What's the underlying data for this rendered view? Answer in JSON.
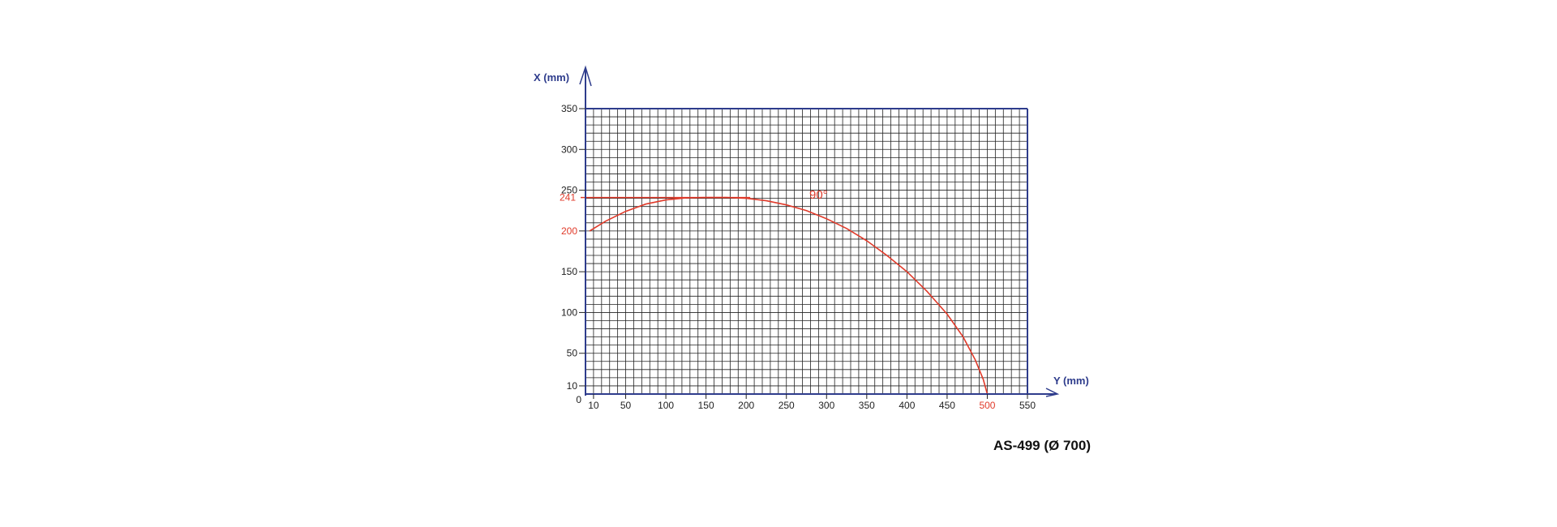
{
  "chart_data": {
    "type": "line",
    "caption": "AS-499 (Ø 700)",
    "x_axis": {
      "label": "Y (mm)",
      "range": [
        0,
        550
      ],
      "tick_labels": [
        "10",
        "50",
        "100",
        "150",
        "200",
        "250",
        "300",
        "350",
        "400",
        "450",
        "500",
        "550"
      ],
      "tick_values": [
        10,
        50,
        100,
        150,
        200,
        250,
        300,
        350,
        400,
        450,
        500,
        550
      ],
      "highlight_tick": "500",
      "minor_step": 10
    },
    "y_axis": {
      "label": "X (mm)",
      "range": [
        0,
        350
      ],
      "tick_labels": [
        "0",
        "10",
        "50",
        "100",
        "150",
        "200",
        "250",
        "300",
        "350"
      ],
      "tick_values": [
        0,
        10,
        50,
        100,
        150,
        200,
        250,
        300,
        350
      ],
      "highlight_ticks": [
        "200"
      ],
      "minor_step": 10
    },
    "grid": true,
    "reference_line": {
      "y": 241,
      "x_end": 205,
      "label": "241"
    },
    "series": [
      {
        "annotation": "90°",
        "color": "#e03a2a",
        "points": [
          [
            5,
            200
          ],
          [
            25,
            212
          ],
          [
            50,
            224
          ],
          [
            75,
            233
          ],
          [
            100,
            238
          ],
          [
            125,
            240.5
          ],
          [
            150,
            241
          ],
          [
            175,
            241
          ],
          [
            200,
            240
          ],
          [
            225,
            237
          ],
          [
            250,
            232
          ],
          [
            275,
            225
          ],
          [
            300,
            215
          ],
          [
            325,
            203
          ],
          [
            350,
            188
          ],
          [
            375,
            170
          ],
          [
            400,
            150
          ],
          [
            425,
            126
          ],
          [
            450,
            98
          ],
          [
            470,
            70
          ],
          [
            485,
            42
          ],
          [
            495,
            18
          ],
          [
            500,
            0
          ]
        ]
      }
    ],
    "colors": {
      "axis": "#2e3c8c",
      "grid": "#222222",
      "curve": "#e03a2a",
      "axis_title": "#2e3c8c"
    }
  }
}
